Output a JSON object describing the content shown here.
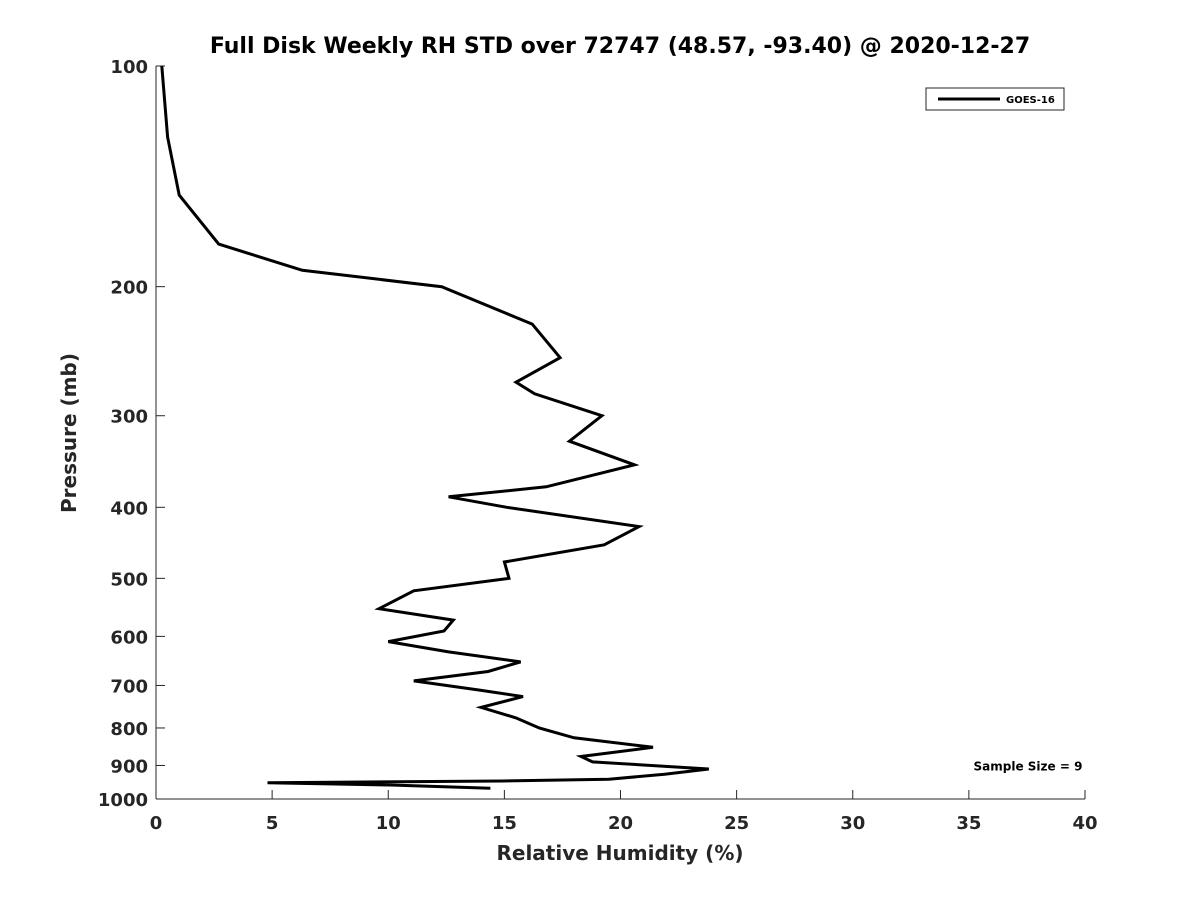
{
  "chart_data": {
    "type": "line",
    "title": "Full Disk Weekly RH STD over 72747 (48.57, -93.40) @ 2020-12-27",
    "xlabel": "Relative Humidity (%)",
    "ylabel": "Pressure (mb)",
    "xlim": [
      0,
      40
    ],
    "ylim": [
      1000,
      100
    ],
    "yscale": "log",
    "grid": false,
    "legend_position": "top-right",
    "x_ticks": [
      0,
      5,
      10,
      15,
      20,
      25,
      30,
      35,
      40
    ],
    "x_tick_labels": [
      "0",
      "5",
      "10",
      "15",
      "20",
      "25",
      "30",
      "35",
      "40"
    ],
    "y_ticks": [
      100,
      200,
      300,
      400,
      500,
      600,
      700,
      800,
      900,
      1000
    ],
    "y_tick_labels": [
      "100",
      "200",
      "300",
      "400",
      "500",
      "600",
      "700",
      "800",
      "900",
      "1000"
    ],
    "series": [
      {
        "name": "GOES-16",
        "color": "#000000",
        "points": [
          [
            0.25,
            100
          ],
          [
            0.5,
            125
          ],
          [
            1.0,
            150
          ],
          [
            2.7,
            175
          ],
          [
            6.3,
            190
          ],
          [
            12.3,
            200
          ],
          [
            16.2,
            225
          ],
          [
            17.4,
            250
          ],
          [
            15.5,
            270
          ],
          [
            16.3,
            280
          ],
          [
            19.2,
            300
          ],
          [
            17.8,
            325
          ],
          [
            20.6,
            350
          ],
          [
            16.8,
            375
          ],
          [
            12.6,
            387
          ],
          [
            15.1,
            400
          ],
          [
            20.8,
            425
          ],
          [
            19.3,
            450
          ],
          [
            15.0,
            475
          ],
          [
            15.2,
            500
          ],
          [
            11.1,
            520
          ],
          [
            9.6,
            550
          ],
          [
            12.8,
            570
          ],
          [
            12.4,
            590
          ],
          [
            10.0,
            610
          ],
          [
            12.6,
            630
          ],
          [
            15.7,
            650
          ],
          [
            14.3,
            670
          ],
          [
            11.1,
            690
          ],
          [
            13.9,
            710
          ],
          [
            15.8,
            725
          ],
          [
            14.0,
            750
          ],
          [
            15.5,
            775
          ],
          [
            16.5,
            800
          ],
          [
            18.0,
            825
          ],
          [
            21.4,
            850
          ],
          [
            18.3,
            875
          ],
          [
            18.8,
            890
          ],
          [
            23.8,
            910
          ],
          [
            21.9,
            925
          ],
          [
            19.5,
            940
          ],
          [
            14.9,
            945
          ],
          [
            4.8,
            950
          ],
          [
            10.1,
            957
          ],
          [
            14.4,
            967
          ]
        ]
      }
    ],
    "annotations": [
      {
        "text": "Sample Size = 9",
        "x": 35.2,
        "y": 900
      }
    ]
  }
}
